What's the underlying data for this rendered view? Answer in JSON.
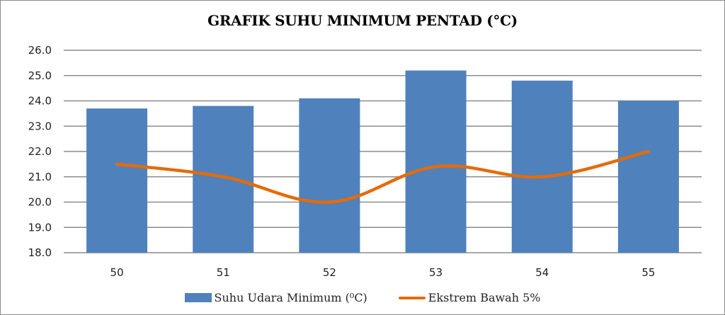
{
  "chart_data": {
    "type": "bar",
    "title": "GRAFIK SUHU MINIMUM PENTAD (°C)",
    "xlabel": "",
    "ylabel": "",
    "ylim": [
      18.0,
      26.0
    ],
    "yticks": [
      "18.0",
      "19.0",
      "20.0",
      "21.0",
      "22.0",
      "23.0",
      "24.0",
      "25.0",
      "26.0"
    ],
    "grid": true,
    "legend_position": "bottom",
    "categories": [
      "50",
      "51",
      "52",
      "53",
      "54",
      "55"
    ],
    "series": [
      {
        "name": "Suhu Udara Minimum (⁰C)",
        "type": "bar",
        "color": "#4f81bd",
        "values": [
          23.7,
          23.8,
          24.1,
          25.2,
          24.8,
          24.0
        ]
      },
      {
        "name": "Ekstrem Bawah  5%",
        "type": "line",
        "smooth": true,
        "color": "#e36c0a",
        "values": [
          21.5,
          21.0,
          20.0,
          21.4,
          21.0,
          22.0
        ]
      }
    ]
  },
  "legend": {
    "bar_label": "Suhu Udara Minimum (⁰C)",
    "line_label": "Ekstrem Bawah  5%"
  }
}
